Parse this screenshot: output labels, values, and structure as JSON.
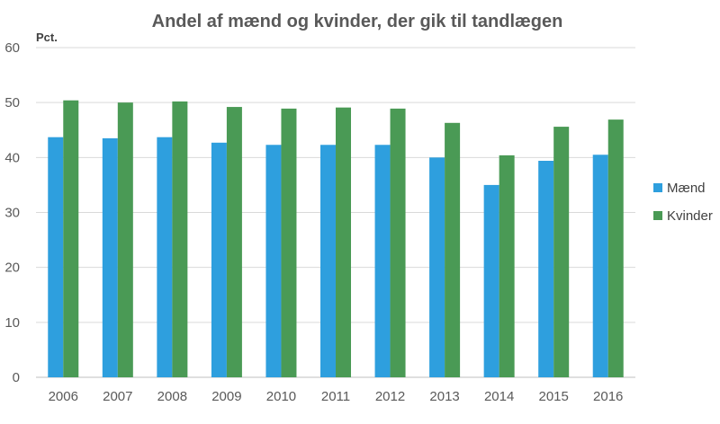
{
  "chart_data": {
    "type": "bar",
    "title": "Andel af mænd og kvinder, der gik til tandlægen",
    "xlabel": "",
    "ylabel": "Pct.",
    "ylim": [
      0,
      60
    ],
    "yticks": [
      0,
      10,
      20,
      30,
      40,
      50,
      60
    ],
    "grid": true,
    "legend_position": "right",
    "categories": [
      "2006",
      "2007",
      "2008",
      "2009",
      "2010",
      "2011",
      "2012",
      "2013",
      "2014",
      "2015",
      "2016"
    ],
    "series": [
      {
        "name": "Mænd",
        "color": "#2e9fde",
        "values": [
          43.7,
          43.5,
          43.7,
          42.7,
          42.3,
          42.3,
          42.3,
          40.0,
          35.0,
          39.4,
          40.5
        ]
      },
      {
        "name": "Kvinder",
        "color": "#4a9a55",
        "values": [
          50.4,
          50.0,
          50.2,
          49.2,
          48.9,
          49.1,
          48.9,
          46.3,
          40.4,
          45.6,
          46.9
        ]
      }
    ]
  }
}
